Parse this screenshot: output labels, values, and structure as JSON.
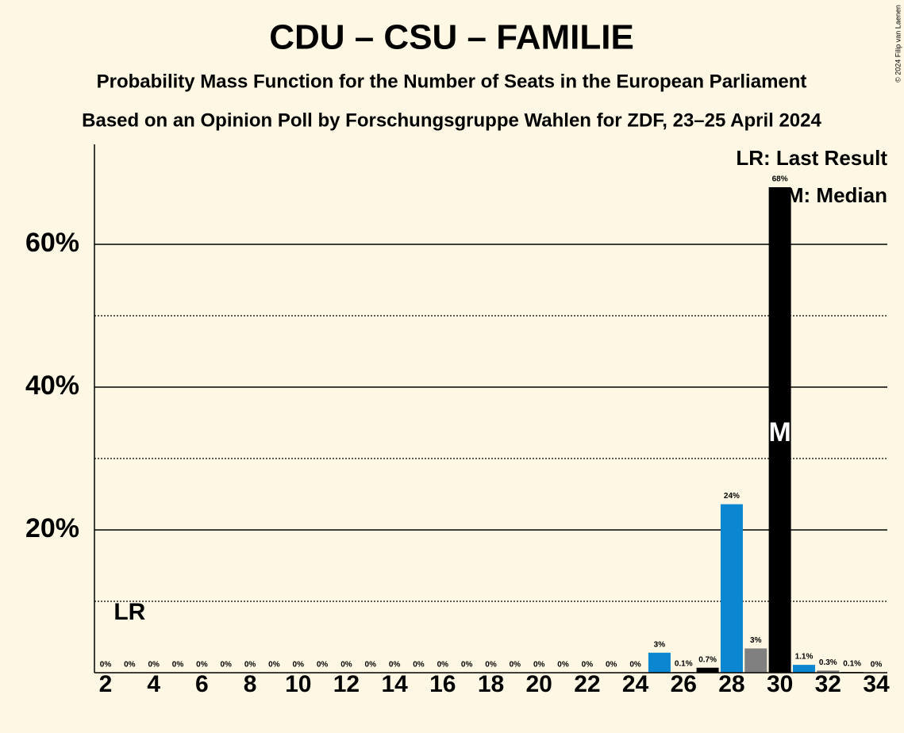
{
  "chart_data": {
    "type": "bar",
    "title": "CDU – CSU – FAMILIE",
    "subtitle": "Probability Mass Function for the Number of Seats in the European Parliament",
    "subtitle2": "Based on an Opinion Poll by Forschungsgruppe Wahlen for ZDF, 23–25 April 2024",
    "copyright": "© 2024 Filip van Laenen",
    "legend": [
      "LR: Last Result",
      "M: Median"
    ],
    "last_result": 3,
    "last_result_label": "LR",
    "median": 30,
    "median_label": "M",
    "categories": [
      2,
      null,
      4,
      null,
      6,
      null,
      8,
      null,
      10,
      null,
      12,
      null,
      14,
      null,
      16,
      null,
      18,
      null,
      20,
      null,
      22,
      null,
      24,
      null,
      26,
      null,
      28,
      null,
      30,
      null,
      32,
      null,
      34
    ],
    "values": [
      0,
      0,
      0,
      0,
      0,
      0,
      0,
      0,
      0,
      0,
      0,
      0,
      0,
      0,
      0,
      0,
      0,
      0,
      0,
      0,
      0,
      0,
      0,
      2.8,
      0.1,
      0.7,
      23.6,
      3.4,
      68,
      1.1,
      0.3,
      0.1,
      0
    ],
    "value_labels": [
      "0%",
      "0%",
      "0%",
      "0%",
      "0%",
      "0%",
      "0%",
      "0%",
      "0%",
      "0%",
      "0%",
      "0%",
      "0%",
      "0%",
      "0%",
      "0%",
      "0%",
      "0%",
      "0%",
      "0%",
      "0%",
      "0%",
      "0%",
      "3%",
      "0.1%",
      "0.7%",
      "24%",
      "3%",
      "68%",
      "1.1%",
      "0.3%",
      "0.1%",
      "0%"
    ],
    "colors": [
      "#808080",
      "#000000",
      "#0a87d0",
      "#808080",
      "#000000",
      "#0a87d0",
      "#808080",
      "#000000",
      "#0a87d0",
      "#808080",
      "#000000",
      "#0a87d0",
      "#808080",
      "#000000",
      "#0a87d0",
      "#808080",
      "#000000",
      "#0a87d0",
      "#808080",
      "#000000",
      "#0a87d0",
      "#808080",
      "#000000",
      "#0a87d0",
      "#808080",
      "#000000",
      "#0a87d0",
      "#808080",
      "#000000",
      "#0a87d0",
      "#808080",
      "#000000",
      "#0a87d0"
    ],
    "ylim": [
      0,
      74
    ],
    "yticks": [
      {
        "value": 20,
        "label": "20%"
      },
      {
        "value": 40,
        "label": "40%"
      },
      {
        "value": 60,
        "label": "60%"
      }
    ],
    "minor_yticks": [
      10,
      30,
      50
    ],
    "grid": true
  }
}
